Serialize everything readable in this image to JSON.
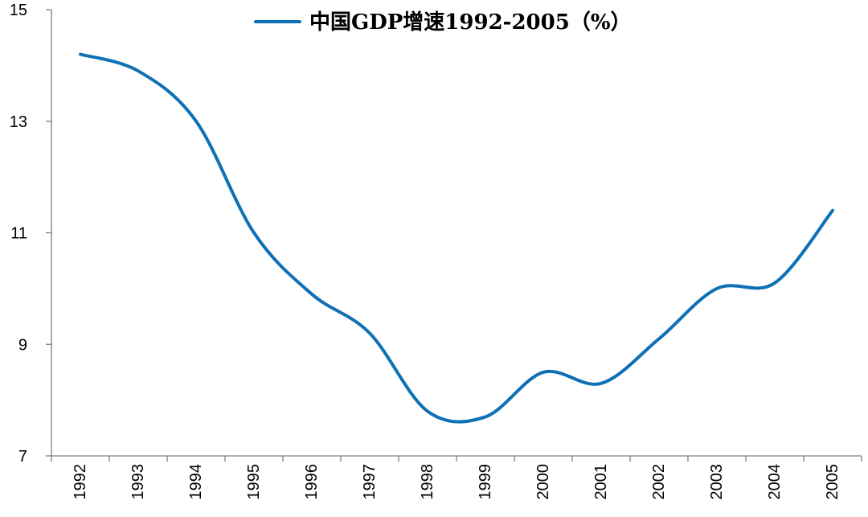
{
  "chart_data": {
    "type": "line",
    "title": "",
    "xlabel": "",
    "ylabel": "",
    "categories": [
      "1992",
      "1993",
      "1994",
      "1995",
      "1996",
      "1997",
      "1998",
      "1999",
      "2000",
      "2001",
      "2002",
      "2003",
      "2004",
      "2005"
    ],
    "series": [
      {
        "name": "中国GDP增速1992-2005（%）",
        "values": [
          14.2,
          13.9,
          13.0,
          11.0,
          9.9,
          9.2,
          7.8,
          7.7,
          8.5,
          8.3,
          9.1,
          10.0,
          10.1,
          11.4
        ],
        "color": "#0E70B5"
      }
    ],
    "ylim": [
      7,
      15
    ],
    "yticks": [
      7,
      9,
      11,
      13,
      15
    ],
    "grid": false,
    "legend_position": "top-center",
    "smooth": true,
    "x_tick_rotation": -90
  }
}
